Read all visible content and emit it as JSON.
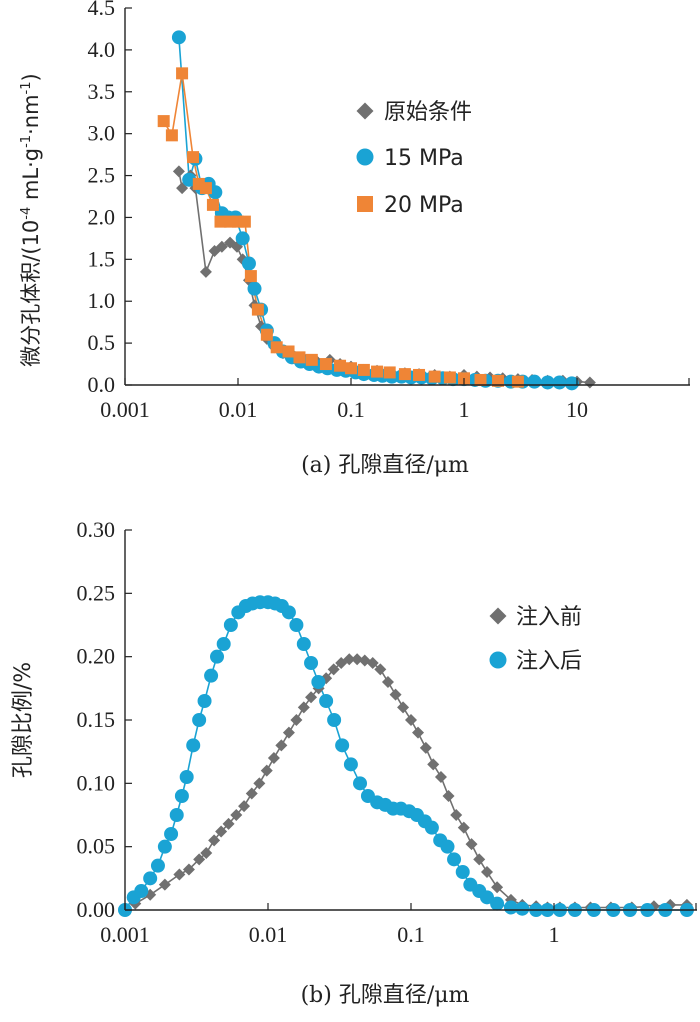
{
  "chart_data": [
    {
      "id": "a",
      "type": "line",
      "xscale": "log",
      "xlim": [
        0.001,
        100
      ],
      "ylim": [
        0,
        4.5
      ],
      "xticks": [
        0.001,
        0.01,
        0.1,
        1,
        10
      ],
      "xtick_labels": [
        "0.001",
        "0.01",
        "0.1",
        "1",
        "10"
      ],
      "yticks": [
        0,
        0.5,
        1.0,
        1.5,
        2.0,
        2.5,
        3.0,
        3.5,
        4.0,
        4.5
      ],
      "ytick_labels": [
        "0.0",
        "0.5",
        "1.0",
        "1.5",
        "2.0",
        "2.5",
        "3.0",
        "3.5",
        "4.0",
        "4.5"
      ],
      "ylabel_prefix": "微分孔体积/(10",
      "ylabel_exp1": "-4",
      "ylabel_mid": " mL·g",
      "ylabel_exp2": "-1",
      "ylabel_mid2": "·nm",
      "ylabel_exp3": "-1",
      "ylabel_suffix": ")",
      "caption": "(a) 孔隙直径/μm",
      "legend_position": "top-right",
      "series": [
        {
          "name": "原始条件",
          "marker": "diamond",
          "color": "#707070",
          "x": [
            0.003,
            0.0032,
            0.0038,
            0.0042,
            0.0052,
            0.0062,
            0.0072,
            0.0085,
            0.0098,
            0.011,
            0.0125,
            0.014,
            0.016,
            0.018,
            0.021,
            0.025,
            0.03,
            0.04,
            0.05,
            0.065,
            0.08,
            0.1,
            0.13,
            0.17,
            0.22,
            0.3,
            0.4,
            0.55,
            0.75,
            1.0,
            1.3,
            1.7,
            2.2,
            3.0,
            4.0,
            5.5,
            7.5,
            10,
            13
          ],
          "y": [
            2.55,
            2.35,
            2.5,
            2.35,
            1.35,
            1.6,
            1.65,
            1.7,
            1.65,
            1.5,
            1.25,
            0.95,
            0.7,
            0.55,
            0.45,
            0.38,
            0.34,
            0.3,
            0.28,
            0.3,
            0.25,
            0.22,
            0.18,
            0.17,
            0.15,
            0.14,
            0.13,
            0.12,
            0.1,
            0.12,
            0.1,
            0.09,
            0.08,
            0.07,
            0.06,
            0.05,
            0.05,
            0.04,
            0.03
          ]
        },
        {
          "name": "15 MPa",
          "marker": "circle",
          "color": "#1aa3d4",
          "x": [
            0.003,
            0.0037,
            0.0042,
            0.0048,
            0.0055,
            0.0063,
            0.0072,
            0.0082,
            0.0095,
            0.011,
            0.0125,
            0.014,
            0.016,
            0.018,
            0.021,
            0.025,
            0.03,
            0.036,
            0.043,
            0.052,
            0.062,
            0.075,
            0.09,
            0.11,
            0.13,
            0.16,
            0.19,
            0.23,
            0.28,
            0.34,
            0.42,
            0.52,
            0.65,
            0.8,
            1.0,
            1.25,
            1.55,
            2.0,
            2.6,
            3.3,
            4.2,
            5.5,
            7,
            9
          ],
          "y": [
            4.15,
            2.45,
            2.7,
            2.35,
            2.4,
            2.3,
            2.05,
            2.0,
            2.0,
            1.75,
            1.45,
            1.15,
            0.9,
            0.65,
            0.5,
            0.4,
            0.33,
            0.28,
            0.25,
            0.22,
            0.2,
            0.18,
            0.17,
            0.15,
            0.13,
            0.12,
            0.11,
            0.1,
            0.1,
            0.09,
            0.09,
            0.08,
            0.08,
            0.07,
            0.07,
            0.06,
            0.05,
            0.05,
            0.04,
            0.04,
            0.04,
            0.03,
            0.03,
            0.02
          ]
        },
        {
          "name": "20 MPa",
          "marker": "square",
          "color": "#ef8536",
          "x": [
            0.0022,
            0.0026,
            0.0032,
            0.004,
            0.0045,
            0.0052,
            0.006,
            0.007,
            0.0085,
            0.01,
            0.0115,
            0.013,
            0.015,
            0.018,
            0.022,
            0.028,
            0.035,
            0.045,
            0.06,
            0.08,
            0.1,
            0.13,
            0.17,
            0.22,
            0.3,
            0.4,
            0.55,
            0.75,
            1.0,
            1.4,
            2.0,
            3.0
          ],
          "y": [
            3.15,
            2.98,
            3.72,
            2.72,
            2.4,
            2.35,
            2.15,
            1.95,
            1.95,
            1.95,
            1.95,
            1.3,
            0.9,
            0.6,
            0.45,
            0.4,
            0.33,
            0.3,
            0.25,
            0.23,
            0.2,
            0.18,
            0.16,
            0.15,
            0.13,
            0.12,
            0.1,
            0.09,
            0.08,
            0.06,
            0.05,
            0.04
          ]
        }
      ]
    },
    {
      "id": "b",
      "type": "line",
      "xscale": "log",
      "xlim": [
        0.001,
        10
      ],
      "ylim": [
        0,
        0.3
      ],
      "xticks": [
        0.001,
        0.01,
        0.1,
        1
      ],
      "xtick_labels": [
        "0.001",
        "0.01",
        "0.1",
        "1"
      ],
      "yticks": [
        0,
        0.05,
        0.1,
        0.15,
        0.2,
        0.25,
        0.3
      ],
      "ytick_labels": [
        "0.00",
        "0.05",
        "0.10",
        "0.15",
        "0.20",
        "0.25",
        "0.30"
      ],
      "ylabel": "孔隙比例/%",
      "caption": "(b) 孔隙直径/μm",
      "legend_position": "top-right",
      "series": [
        {
          "name": "注入前",
          "marker": "diamond",
          "color": "#707070",
          "x": [
            0.00118,
            0.0015,
            0.0019,
            0.0024,
            0.0028,
            0.0033,
            0.0037,
            0.0042,
            0.0047,
            0.0053,
            0.006,
            0.0068,
            0.0077,
            0.0087,
            0.0098,
            0.011,
            0.0124,
            0.014,
            0.0158,
            0.0178,
            0.02,
            0.0226,
            0.0255,
            0.0288,
            0.0325,
            0.037,
            0.042,
            0.0475,
            0.054,
            0.061,
            0.069,
            0.078,
            0.088,
            0.1,
            0.112,
            0.127,
            0.143,
            0.162,
            0.183,
            0.207,
            0.234,
            0.265,
            0.3,
            0.34,
            0.4,
            0.5,
            0.6,
            0.75,
            0.9,
            1.1,
            1.4,
            1.8,
            2.5,
            3.5,
            5,
            6.5,
            8.5
          ],
          "y": [
            0.005,
            0.012,
            0.02,
            0.028,
            0.032,
            0.04,
            0.045,
            0.055,
            0.062,
            0.068,
            0.075,
            0.082,
            0.092,
            0.1,
            0.11,
            0.12,
            0.13,
            0.14,
            0.15,
            0.16,
            0.168,
            0.175,
            0.183,
            0.19,
            0.195,
            0.198,
            0.198,
            0.197,
            0.195,
            0.19,
            0.18,
            0.17,
            0.16,
            0.15,
            0.14,
            0.128,
            0.115,
            0.105,
            0.09,
            0.075,
            0.065,
            0.052,
            0.04,
            0.03,
            0.018,
            0.008,
            0.004,
            0.003,
            0.002,
            0.002,
            0.002,
            0.002,
            0.002,
            0.002,
            0.003,
            0.004,
            0.004
          ]
        },
        {
          "name": "注入后",
          "marker": "circle",
          "color": "#1aa3d4",
          "x": [
            0.001,
            0.00115,
            0.0013,
            0.0015,
            0.0017,
            0.0019,
            0.0021,
            0.0023,
            0.0025,
            0.0027,
            0.003,
            0.0033,
            0.0036,
            0.004,
            0.0044,
            0.0049,
            0.0055,
            0.0062,
            0.007,
            0.0078,
            0.0088,
            0.01,
            0.0112,
            0.0125,
            0.014,
            0.0158,
            0.0178,
            0.02,
            0.0225,
            0.0255,
            0.029,
            0.033,
            0.038,
            0.044,
            0.05,
            0.058,
            0.066,
            0.075,
            0.085,
            0.097,
            0.11,
            0.125,
            0.14,
            0.16,
            0.18,
            0.2,
            0.23,
            0.26,
            0.3,
            0.34,
            0.4,
            0.5,
            0.6,
            0.75,
            0.9,
            1.1,
            1.4,
            1.9,
            2.6,
            3.4,
            4.5,
            6,
            8.5
          ],
          "y": [
            0.0,
            0.01,
            0.015,
            0.025,
            0.035,
            0.05,
            0.06,
            0.075,
            0.09,
            0.105,
            0.13,
            0.15,
            0.165,
            0.185,
            0.2,
            0.21,
            0.225,
            0.235,
            0.24,
            0.242,
            0.243,
            0.243,
            0.242,
            0.24,
            0.235,
            0.225,
            0.21,
            0.195,
            0.18,
            0.165,
            0.15,
            0.13,
            0.115,
            0.1,
            0.09,
            0.085,
            0.083,
            0.08,
            0.08,
            0.078,
            0.075,
            0.07,
            0.065,
            0.055,
            0.05,
            0.04,
            0.03,
            0.02,
            0.015,
            0.01,
            0.005,
            0.002,
            0.001,
            0.0,
            0.0,
            0.0,
            0.0,
            0.0,
            0.0,
            0.0,
            0.0,
            0.0,
            0.0
          ]
        }
      ]
    }
  ]
}
